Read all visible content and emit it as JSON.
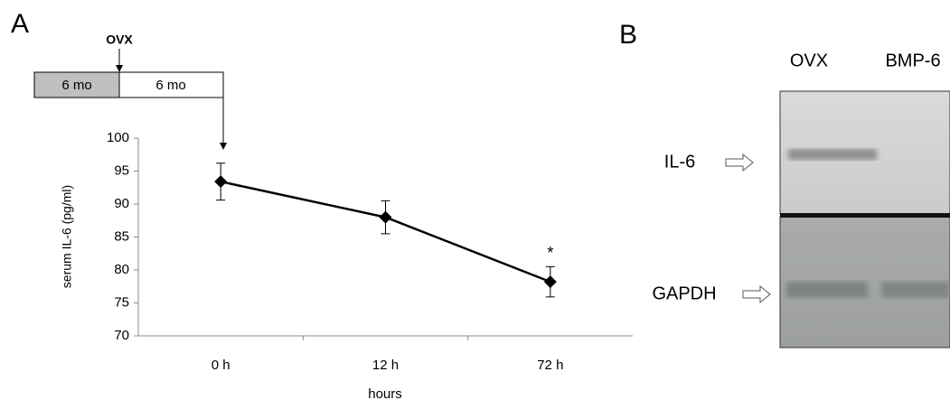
{
  "panels": [
    "A",
    "B"
  ],
  "timeline": {
    "event": "OVX",
    "segments": [
      "6 mo",
      "6 mo"
    ]
  },
  "chart_data": {
    "type": "line",
    "x_label": "hours",
    "y_label": "serum IL-6 (pg/ml)",
    "categories": [
      "0 h",
      "12 h",
      "72 h"
    ],
    "values": [
      93.4,
      88,
      78.2
    ],
    "errors": [
      2.8,
      2.5,
      2.3
    ],
    "color": "#000000",
    "annotation": "*",
    "ylim": [
      70,
      100
    ],
    "yticks": [
      70,
      75,
      80,
      85,
      90,
      95,
      100
    ]
  },
  "gel": {
    "lanes": [
      "OVX",
      "BMP-6"
    ],
    "bands": [
      "IL-6",
      "GAPDH"
    ]
  }
}
